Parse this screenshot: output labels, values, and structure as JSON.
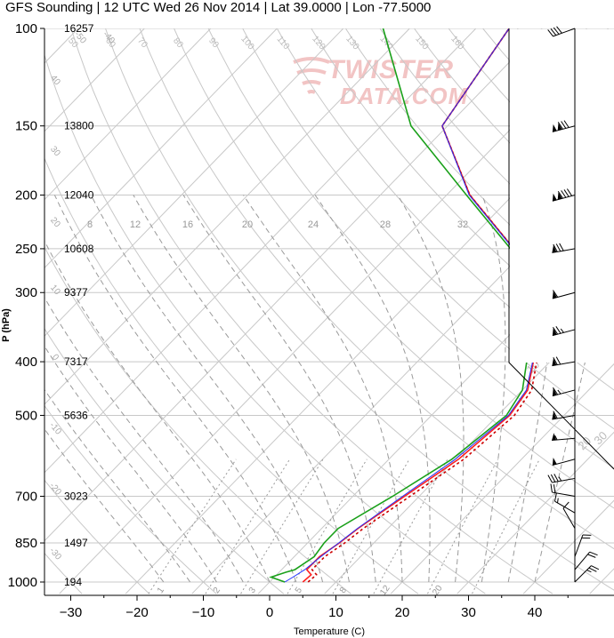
{
  "title": "GFS Sounding | 12 UTC Wed 26 Nov 2014 | Lat 39.0000 | Lon -77.5000",
  "watermark": [
    "TWISTER",
    "DATA.COM"
  ],
  "chart_data": {
    "type": "skew-t",
    "xlabel": "Temperature (C)",
    "ylabel": "P (hPa)",
    "x_ticks": [
      -30,
      -20,
      -10,
      0,
      10,
      20,
      30,
      40
    ],
    "x_tick_labels": [
      "−30",
      "−20",
      "−10",
      "0",
      "10",
      "20",
      "30",
      "40"
    ],
    "y_ticks": [
      100,
      150,
      200,
      250,
      300,
      400,
      500,
      700,
      850,
      1000
    ],
    "y_tick_labels": [
      "100",
      "150",
      "200",
      "250",
      "300",
      "400",
      "500",
      "700",
      "850",
      "1000"
    ],
    "xlim": [
      -34,
      46
    ],
    "ylim_hpa": [
      1050,
      100
    ],
    "heights_m": [
      {
        "p": 100,
        "label": "16257"
      },
      {
        "p": 150,
        "label": "13800"
      },
      {
        "p": 200,
        "label": "12040"
      },
      {
        "p": 250,
        "label": "10608"
      },
      {
        "p": 300,
        "label": "9377"
      },
      {
        "p": 400,
        "label": "7317"
      },
      {
        "p": 500,
        "label": "5636"
      },
      {
        "p": 700,
        "label": "3023"
      },
      {
        "p": 850,
        "label": "1497"
      },
      {
        "p": 1000,
        "label": "194"
      }
    ],
    "mixing_ratio_labels": [
      "8",
      "12",
      "16",
      "20",
      "24",
      "28",
      "32"
    ],
    "bottom_isohume_labels": [
      "1",
      "2",
      "3",
      "5",
      "8",
      "12",
      "20"
    ],
    "skewed_isotherm_labels": [
      "-30",
      "-20",
      "-10",
      "0",
      "10",
      "20",
      "30"
    ],
    "theta_labels": [
      "40",
      "30",
      "20",
      "10",
      "0",
      "-10",
      "-20",
      "-30",
      "-40",
      "-50"
    ],
    "theta_e_labels": [
      "50",
      "60",
      "70",
      "80",
      "90",
      "100",
      "110",
      "120",
      "130",
      "140",
      "150",
      "160"
    ],
    "series": [
      {
        "role": "temperature",
        "color": "#ff2020",
        "points": [
          [
            1000,
            5.0
          ],
          [
            970,
            5.2
          ],
          [
            950,
            3.8
          ],
          [
            900,
            3.8
          ],
          [
            850,
            4.8
          ],
          [
            800,
            5.5
          ],
          [
            700,
            7.8
          ],
          [
            600,
            10.5
          ],
          [
            500,
            11.8
          ],
          [
            450,
            10.8
          ],
          [
            400,
            7.5
          ],
          [
            350,
            4.0
          ],
          [
            300,
            -3.5
          ],
          [
            250,
            -12.0
          ],
          [
            200,
            -26.5
          ],
          [
            150,
            -40.8
          ],
          [
            100,
            -45.0
          ]
        ]
      },
      {
        "role": "virtual temperature",
        "color": "#cc0000",
        "dashed": true,
        "points": [
          [
            1000,
            5.8
          ],
          [
            970,
            6.0
          ],
          [
            950,
            4.6
          ],
          [
            900,
            4.6
          ],
          [
            850,
            5.6
          ],
          [
            800,
            6.3
          ],
          [
            700,
            8.6
          ],
          [
            600,
            11.3
          ],
          [
            500,
            12.5
          ],
          [
            450,
            11.4
          ],
          [
            400,
            8.0
          ],
          [
            350,
            4.4
          ],
          [
            300,
            -3.4
          ],
          [
            250,
            -12.0
          ],
          [
            200,
            -26.5
          ],
          [
            150,
            -40.8
          ],
          [
            100,
            -45.0
          ]
        ]
      },
      {
        "role": "dewpoint",
        "color": "#1aa01a",
        "points": [
          [
            1000,
            2.3
          ],
          [
            980,
            -0.5
          ],
          [
            960,
            1.0
          ],
          [
            950,
            2.0
          ],
          [
            900,
            3.0
          ],
          [
            850,
            2.5
          ],
          [
            800,
            2.5
          ],
          [
            700,
            6.0
          ],
          [
            600,
            9.5
          ],
          [
            500,
            11.3
          ],
          [
            450,
            10.0
          ],
          [
            400,
            6.5
          ],
          [
            350,
            3.5
          ],
          [
            300,
            -4.5
          ],
          [
            250,
            -12.5
          ],
          [
            200,
            -27.0
          ],
          [
            150,
            -45.5
          ],
          [
            100,
            -64.0
          ]
        ]
      },
      {
        "role": "parcel",
        "color": "#2030ff",
        "points": [
          [
            1000,
            2.3
          ],
          [
            980,
            2.8
          ],
          [
            950,
            3.5
          ],
          [
            900,
            4.0
          ],
          [
            850,
            4.7
          ],
          [
            800,
            5.4
          ],
          [
            700,
            7.5
          ],
          [
            600,
            10.0
          ],
          [
            500,
            11.6
          ],
          [
            450,
            10.6
          ],
          [
            400,
            7.4
          ],
          [
            350,
            3.9
          ],
          [
            300,
            -3.6
          ],
          [
            250,
            -12.1
          ],
          [
            200,
            -26.6
          ],
          [
            150,
            -40.8
          ],
          [
            100,
            -45.0
          ]
        ]
      }
    ],
    "wind_barbs": [
      {
        "p": 100,
        "dir": 250,
        "speed": 40
      },
      {
        "p": 150,
        "dir": 255,
        "speed": 130
      },
      {
        "p": 200,
        "dir": 255,
        "speed": 140
      },
      {
        "p": 250,
        "dir": 260,
        "speed": 80
      },
      {
        "p": 300,
        "dir": 255,
        "speed": 60
      },
      {
        "p": 350,
        "dir": 255,
        "speed": 75
      },
      {
        "p": 400,
        "dir": 260,
        "speed": 70
      },
      {
        "p": 450,
        "dir": 255,
        "speed": 65
      },
      {
        "p": 500,
        "dir": 260,
        "speed": 60
      },
      {
        "p": 550,
        "dir": 265,
        "speed": 55
      },
      {
        "p": 600,
        "dir": 255,
        "speed": 50
      },
      {
        "p": 650,
        "dir": 260,
        "speed": 35
      },
      {
        "p": 700,
        "dir": 280,
        "speed": 20
      },
      {
        "p": 750,
        "dir": 300,
        "speed": 15
      },
      {
        "p": 800,
        "dir": 330,
        "speed": 10
      },
      {
        "p": 900,
        "dir": 20,
        "speed": 20
      },
      {
        "p": 950,
        "dir": 40,
        "speed": 20
      },
      {
        "p": 1000,
        "dir": 45,
        "speed": 25
      }
    ],
    "colors": {
      "grid": "#c8c8c8",
      "dashed": "#9a9a9a",
      "watermark": "#f2c4c4"
    }
  }
}
